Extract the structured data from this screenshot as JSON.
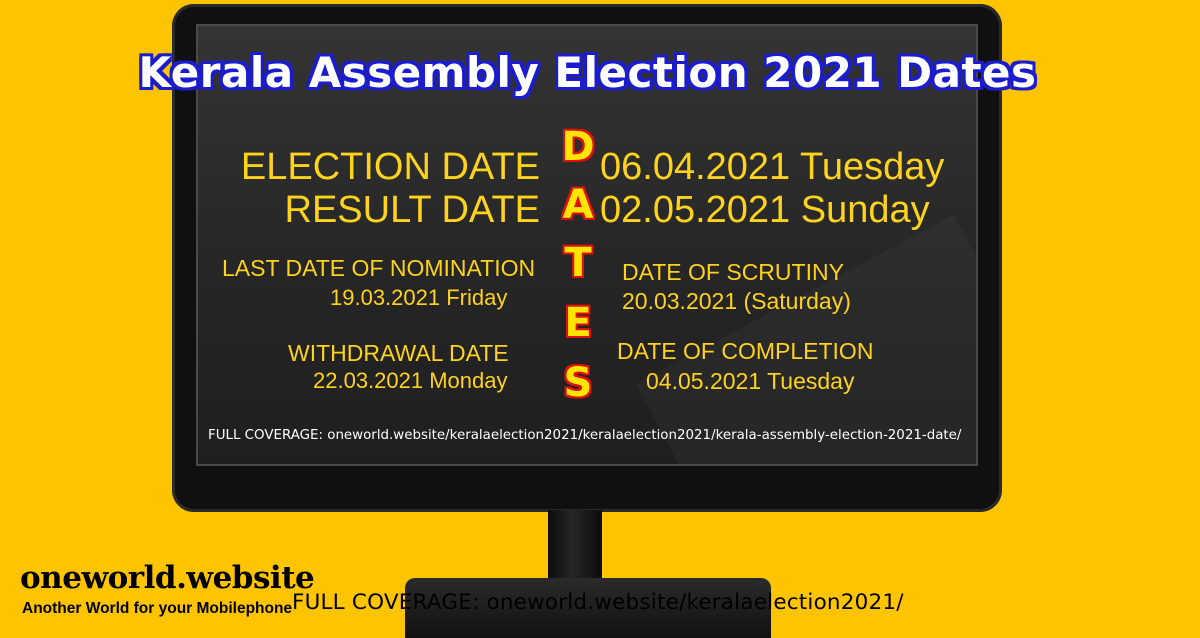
{
  "headline": "Kerala Assembly Election 2021 Dates",
  "vertical_word": [
    "D",
    "A",
    "T",
    "E",
    "S"
  ],
  "election": {
    "label": "ELECTION DATE",
    "date": "06.04.2021 Tuesday"
  },
  "result": {
    "label": "RESULT DATE",
    "date": "02.05.2021 Sunday"
  },
  "nomination": {
    "label": "LAST DATE OF NOMINATION",
    "date": "19.03.2021 Friday"
  },
  "scrutiny": {
    "label": "DATE OF SCRUTINY",
    "date": "20.03.2021 (Saturday)"
  },
  "withdrawal": {
    "label": "WITHDRAWAL DATE",
    "date": "22.03.2021 Monday"
  },
  "completion": {
    "label": "DATE OF COMPLETION",
    "date": "04.05.2021 Tuesday"
  },
  "screen_footer": "FULL COVERAGE: oneworld.website/keralaelection2021/keralaelection2021/kerala-assembly-election-2021-date/",
  "branding": {
    "site_name": "oneworld.website",
    "tagline": "Another World for your Mobilephone",
    "coverage": "FULL COVERAGE: oneworld.website/keralaelection2021/"
  },
  "colors": {
    "background": "#FFC400",
    "text_yellow": "#FFD21C",
    "headline_outline": "#1c1ccf",
    "dates_letter": "#FFE500",
    "dates_outline": "#e01010"
  }
}
